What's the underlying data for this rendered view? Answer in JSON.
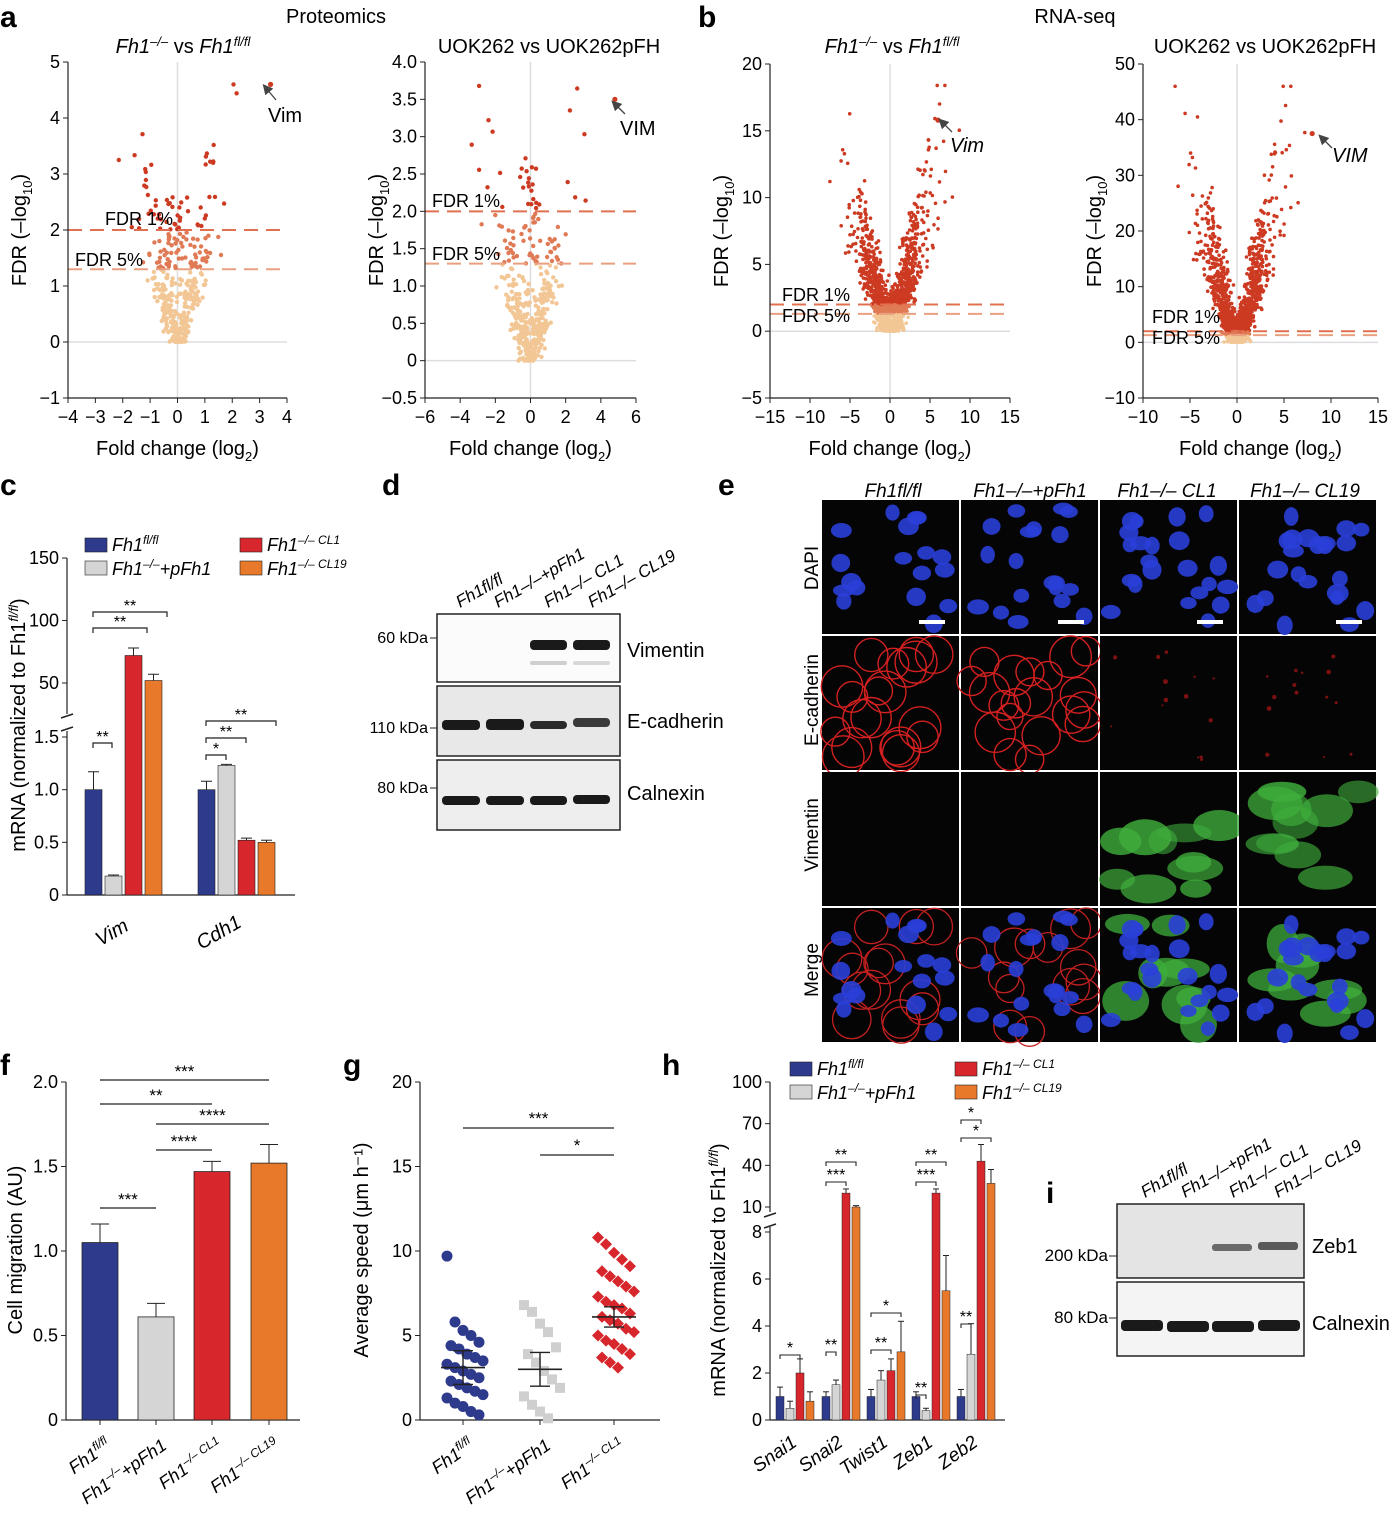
{
  "panel_letters": {
    "a": "a",
    "b": "b",
    "c": "c",
    "d": "d",
    "e": "e",
    "f": "f",
    "g": "g",
    "h": "h",
    "i": "i"
  },
  "a": {
    "section": "Proteomics",
    "left": {
      "title_parts": [
        "Fh1",
        "–/–",
        " vs ",
        "Fh1",
        "fl/fl"
      ],
      "arrow_label": "Vim"
    },
    "right": {
      "title": "UOK262 vs UOK262pFH",
      "arrow_label": "VIM"
    },
    "fdr1": "FDR 1%",
    "fdr5": "FDR 5%"
  },
  "b": {
    "section": "RNA-seq",
    "left": {
      "title_parts": [
        "Fh1",
        "–/–",
        " vs ",
        "Fh1",
        "fl/fl"
      ],
      "arrow_label": "Vim"
    },
    "right": {
      "title": "UOK262 vs UOK262pFH",
      "arrow_label": "VIM"
    },
    "fdr1": "FDR 1%",
    "fdr5": "FDR 5%"
  },
  "c": {
    "ylabel": "mRNA (normalized to Fh1",
    "ylabel_sup": "fl/fl",
    "groups": [
      "Vim",
      "Cdh1"
    ]
  },
  "d": {
    "lanes": [
      "Fh1fl/fl",
      "Fh1–/–+pFh1",
      "Fh1–/– CL1",
      "Fh1–/– CL19"
    ],
    "markers": [
      "60 kDa",
      "110 kDa",
      "80 kDa"
    ],
    "bands": [
      "Vimentin",
      "E-cadherin",
      "Calnexin"
    ]
  },
  "e": {
    "columns": [
      "Fh1fl/fl",
      "Fh1–/–+pFh1",
      "Fh1–/– CL1",
      "Fh1–/– CL19"
    ],
    "rows": [
      "DAPI",
      "E-cadherin",
      "Vimentin",
      "Merge"
    ]
  },
  "f": {
    "ylabel": "Cell migration (AU)"
  },
  "g": {
    "ylabel": "Average speed (μm h⁻¹)"
  },
  "h": {
    "ylabel": "mRNA (normalized to Fh1",
    "ylabel_sup": "fl/fl"
  },
  "i": {
    "markers": [
      "200 kDa",
      "80 kDa"
    ],
    "bands": [
      "Zeb1",
      "Calnexin"
    ]
  },
  "legend": {
    "fl": [
      "Fh1",
      "fl/fl"
    ],
    "pfh1": [
      "Fh1",
      "–/–",
      "+pFh1"
    ],
    "cl1": [
      "Fh1",
      "–/– CL1"
    ],
    "cl19": [
      "Fh1",
      "–/– CL19"
    ]
  },
  "colors": {
    "fl": "#2e3a8c",
    "pfh1": "#d5d5d5",
    "cl1": "#d7262c",
    "cl19": "#e8792a",
    "sig": "#cd3a22",
    "sig_mid": "#e07a55",
    "nonsig": "#f2c795"
  },
  "chart_data": [
    {
      "type": "scatter",
      "id": "a-left",
      "title": "Fh1–/– vs Fh1fl/fl",
      "xlabel": "Fold change (log2)",
      "ylabel": "FDR (–log10)",
      "xlim": [
        -4,
        4
      ],
      "ylim": [
        -1,
        5
      ],
      "xticks": [
        -4,
        -3,
        -2,
        -1,
        0,
        1,
        2,
        3,
        4
      ],
      "yticks": [
        -1,
        0,
        1,
        2,
        3,
        4,
        5
      ],
      "fdr_lines": [
        2,
        1.3
      ],
      "highlight": {
        "label": "Vim",
        "x": 3.4,
        "y": 4.6
      }
    },
    {
      "type": "scatter",
      "id": "a-right",
      "title": "UOK262 vs UOK262pFH",
      "xlabel": "Fold change (log2)",
      "ylabel": "FDR (–log10)",
      "xlim": [
        -6,
        6
      ],
      "ylim": [
        -0.5,
        4.0
      ],
      "xticks": [
        -6,
        -4,
        -2,
        0,
        2,
        4,
        6
      ],
      "yticks": [
        -0.5,
        0,
        0.5,
        1.0,
        1.5,
        2.0,
        2.5,
        3.0,
        3.5,
        4.0
      ],
      "fdr_lines": [
        2,
        1.3
      ],
      "highlight": {
        "label": "VIM",
        "x": 4.8,
        "y": 3.5
      }
    },
    {
      "type": "scatter",
      "id": "b-left",
      "title": "Fh1–/– vs Fh1fl/fl",
      "xlabel": "Fold change (log2)",
      "ylabel": "FDR (–log10)",
      "xlim": [
        -15,
        15
      ],
      "ylim": [
        -5,
        20
      ],
      "xticks": [
        -15,
        -10,
        -5,
        0,
        5,
        10,
        15
      ],
      "yticks": [
        -5,
        0,
        5,
        10,
        15,
        20
      ],
      "fdr_lines": [
        2,
        1.3
      ],
      "highlight": {
        "label": "Vim",
        "x": 6,
        "y": 15.8
      }
    },
    {
      "type": "scatter",
      "id": "b-right",
      "title": "UOK262 vs UOK262pFH",
      "xlabel": "Fold change (log2)",
      "ylabel": "FDR (–log10)",
      "xlim": [
        -10,
        15
      ],
      "ylim": [
        -10,
        50
      ],
      "xticks": [
        -10,
        -5,
        0,
        5,
        10,
        15
      ],
      "yticks": [
        -10,
        0,
        10,
        20,
        30,
        40,
        50
      ],
      "fdr_lines": [
        2,
        1.3
      ],
      "highlight": {
        "label": "VIM",
        "x": 8,
        "y": 37.5
      }
    },
    {
      "type": "bar",
      "id": "c",
      "categories": [
        "Vim",
        "Cdh1"
      ],
      "ylabel": "mRNA (normalized to Fh1fl/fl)",
      "yticks_low": [
        0,
        0.5,
        1.0,
        1.5
      ],
      "yticks_high": [
        50,
        100,
        150
      ],
      "series": [
        {
          "name": "Fh1fl/fl",
          "values": [
            1.0,
            1.0
          ],
          "err": [
            0.17,
            0.08
          ]
        },
        {
          "name": "Fh1–/–+pFh1",
          "values": [
            0.18,
            1.23
          ],
          "err": [
            0.01,
            0.01
          ]
        },
        {
          "name": "Fh1–/– CL1",
          "values": [
            72,
            0.52
          ],
          "err": [
            6,
            0.02
          ]
        },
        {
          "name": "Fh1–/– CL19",
          "values": [
            52,
            0.5
          ],
          "err": [
            5,
            0.02
          ]
        }
      ],
      "annotations": [
        "**",
        "**",
        "**",
        "*",
        "**",
        "**"
      ]
    },
    {
      "type": "bar",
      "id": "f",
      "categories": [
        "Fh1fl/fl",
        "Fh1–/–+pFh1",
        "Fh1–/– CL1",
        "Fh1–/– CL19"
      ],
      "values": [
        1.05,
        0.61,
        1.47,
        1.52
      ],
      "err": [
        0.11,
        0.08,
        0.06,
        0.11
      ],
      "ylabel": "Cell migration (AU)",
      "ylim": [
        0,
        2.0
      ],
      "yticks": [
        0,
        0.5,
        1.0,
        1.5,
        2.0
      ],
      "annotations": [
        "***",
        "**",
        "****",
        "****",
        "***"
      ]
    },
    {
      "type": "scatter",
      "id": "g",
      "categories": [
        "Fh1fl/fl",
        "Fh1–/–+pFh1",
        "Fh1–/– CL1"
      ],
      "ylabel": "Average speed (μm h⁻¹)",
      "ylim": [
        0,
        20
      ],
      "yticks": [
        0,
        5,
        10,
        15,
        20
      ],
      "means": [
        3.1,
        3.0,
        6.1
      ],
      "sem": [
        1.0,
        1.0,
        0.6
      ],
      "points": [
        [
          9.7,
          5.8,
          5.3,
          5.0,
          4.6,
          4.4,
          4.2,
          3.9,
          3.7,
          3.5,
          3.3,
          3.1,
          2.9,
          2.7,
          2.5,
          2.3,
          2.1,
          1.9,
          1.7,
          1.5,
          1.3,
          1.0,
          0.8,
          0.5,
          0.3
        ],
        [
          6.8,
          6.4,
          5.7,
          5.2,
          4.3,
          3.9,
          3.4,
          2.9,
          2.4,
          1.9,
          1.4,
          0.9,
          0.5,
          0.1
        ],
        [
          10.8,
          10.4,
          9.9,
          9.5,
          9.1,
          8.8,
          8.5,
          8.2,
          7.9,
          7.6,
          7.3,
          7.0,
          6.8,
          6.6,
          6.3,
          6.1,
          5.9,
          5.7,
          5.4,
          5.2,
          5.0,
          4.7,
          4.5,
          4.2,
          3.9,
          3.7,
          3.4,
          3.1
        ]
      ],
      "annotations": [
        "***",
        "*"
      ]
    },
    {
      "type": "bar",
      "id": "h",
      "categories": [
        "Snai1",
        "Snai2",
        "Twist1",
        "Zeb1",
        "Zeb2"
      ],
      "ylabel": "mRNA (normalized to Fh1fl/fl)",
      "yticks_low": [
        0,
        2,
        4,
        6,
        8
      ],
      "yticks_high": [
        10,
        40,
        70,
        100
      ],
      "series": [
        {
          "name": "Fh1fl/fl",
          "values": [
            1.0,
            1.0,
            1.0,
            1.0,
            1.0
          ],
          "err": [
            0.4,
            0.2,
            0.3,
            0.2,
            0.3
          ]
        },
        {
          "name": "Fh1–/–+pFh1",
          "values": [
            0.5,
            1.5,
            1.7,
            0.4,
            2.8
          ],
          "err": [
            0.3,
            0.2,
            0.4,
            0.1,
            1.3
          ]
        },
        {
          "name": "Fh1–/– CL1",
          "values": [
            2.0,
            20,
            2.1,
            20,
            43
          ],
          "err": [
            0.6,
            3,
            0.5,
            3,
            12
          ]
        },
        {
          "name": "Fh1–/– CL19",
          "values": [
            0.8,
            10,
            2.9,
            5.5,
            27
          ],
          "err": [
            0.4,
            1,
            1.3,
            1.5,
            10
          ]
        }
      ],
      "annotations": [
        "*",
        "**",
        "***",
        "**",
        "*",
        "**",
        "***",
        "**",
        "**",
        "*",
        "*",
        "**"
      ]
    }
  ]
}
